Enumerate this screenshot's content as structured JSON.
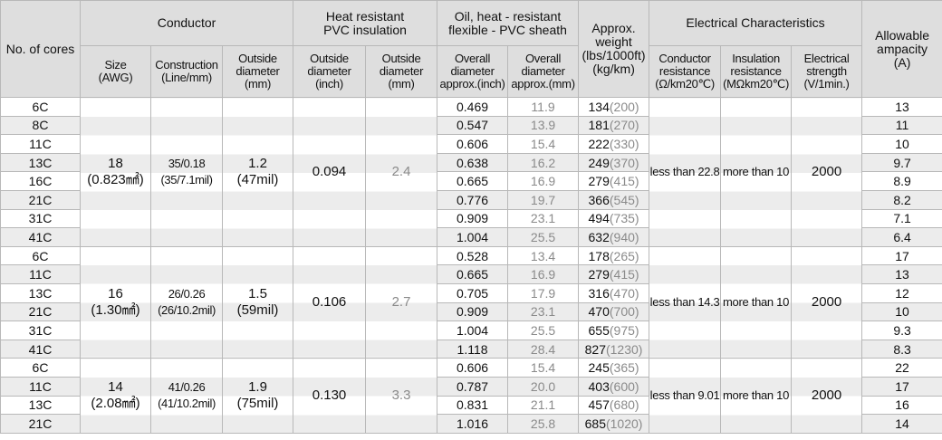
{
  "header": {
    "cells": [
      {
        "lines": [
          "No. of cores"
        ]
      },
      {
        "lines": [
          "Conductor"
        ]
      },
      {
        "lines": [
          "Heat resistant",
          "PVC insulation"
        ]
      },
      {
        "lines": [
          "Oil, heat - resistant",
          "flexible - PVC sheath"
        ]
      },
      {
        "lines": [
          "Approx.",
          "weight",
          "(lbs/1000ft)",
          "(kg/km)"
        ]
      },
      {
        "lines": [
          "Electrical Characteristics"
        ]
      },
      {
        "lines": [
          "Allowable",
          "ampacity",
          "(A)"
        ]
      },
      {
        "lines": [
          "Size",
          "(AWG)"
        ]
      },
      {
        "lines": [
          "Construction",
          "(Line/mm)"
        ]
      },
      {
        "lines": [
          "Outside",
          "diameter",
          "(mm)"
        ]
      },
      {
        "lines": [
          "Outside",
          "diameter",
          "(inch)"
        ]
      },
      {
        "lines": [
          "Outside",
          "diameter",
          "(mm)"
        ]
      },
      {
        "lines": [
          "Overall",
          "diameter",
          "approx.(inch)"
        ]
      },
      {
        "lines": [
          "Overall",
          "diameter",
          "approx.(mm)"
        ]
      },
      {
        "lines": [
          "Conductor",
          "resistance",
          "(Ω/km20℃)"
        ]
      },
      {
        "lines": [
          "Insulation",
          "resistance",
          "(MΩkm20℃)"
        ]
      },
      {
        "lines": [
          "Electrical",
          "strength",
          "(V/1min.)"
        ]
      }
    ]
  },
  "groups": [
    {
      "size": [
        "18",
        "(0.823㎟)"
      ],
      "construction": [
        "35/0.18",
        "(35/7.1mil)"
      ],
      "outside_diameter": [
        "1.2",
        "(47mil)"
      ],
      "insulation_inch": "0.094",
      "insulation_mm": "2.4",
      "conductor_resistance": "less than 22.8",
      "insulation_resistance": "more than 10",
      "electrical_strength": "2000",
      "rows": [
        {
          "cores": "6C",
          "overall_inch": "0.469",
          "overall_mm": "11.9",
          "weight_lbs": "134",
          "weight_kg": "(200)",
          "ampacity": "13"
        },
        {
          "cores": "8C",
          "overall_inch": "0.547",
          "overall_mm": "13.9",
          "weight_lbs": "181",
          "weight_kg": "(270)",
          "ampacity": "11"
        },
        {
          "cores": "11C",
          "overall_inch": "0.606",
          "overall_mm": "15.4",
          "weight_lbs": "222",
          "weight_kg": "(330)",
          "ampacity": "10"
        },
        {
          "cores": "13C",
          "overall_inch": "0.638",
          "overall_mm": "16.2",
          "weight_lbs": "249",
          "weight_kg": "(370)",
          "ampacity": "9.7"
        },
        {
          "cores": "16C",
          "overall_inch": "0.665",
          "overall_mm": "16.9",
          "weight_lbs": "279",
          "weight_kg": "(415)",
          "ampacity": "8.9"
        },
        {
          "cores": "21C",
          "overall_inch": "0.776",
          "overall_mm": "19.7",
          "weight_lbs": "366",
          "weight_kg": "(545)",
          "ampacity": "8.2"
        },
        {
          "cores": "31C",
          "overall_inch": "0.909",
          "overall_mm": "23.1",
          "weight_lbs": "494",
          "weight_kg": "(735)",
          "ampacity": "7.1"
        },
        {
          "cores": "41C",
          "overall_inch": "1.004",
          "overall_mm": "25.5",
          "weight_lbs": "632",
          "weight_kg": "(940)",
          "ampacity": "6.4"
        }
      ]
    },
    {
      "size": [
        "16",
        "(1.30㎟)"
      ],
      "construction": [
        "26/0.26",
        "(26/10.2mil)"
      ],
      "outside_diameter": [
        "1.5",
        "(59mil)"
      ],
      "insulation_inch": "0.106",
      "insulation_mm": "2.7",
      "conductor_resistance": "less than 14.3",
      "insulation_resistance": "more than 10",
      "electrical_strength": "2000",
      "rows": [
        {
          "cores": "6C",
          "overall_inch": "0.528",
          "overall_mm": "13.4",
          "weight_lbs": "178",
          "weight_kg": "(265)",
          "ampacity": "17"
        },
        {
          "cores": "11C",
          "overall_inch": "0.665",
          "overall_mm": "16.9",
          "weight_lbs": "279",
          "weight_kg": "(415)",
          "ampacity": "13"
        },
        {
          "cores": "13C",
          "overall_inch": "0.705",
          "overall_mm": "17.9",
          "weight_lbs": "316",
          "weight_kg": "(470)",
          "ampacity": "12"
        },
        {
          "cores": "21C",
          "overall_inch": "0.909",
          "overall_mm": "23.1",
          "weight_lbs": "470",
          "weight_kg": "(700)",
          "ampacity": "10"
        },
        {
          "cores": "31C",
          "overall_inch": "1.004",
          "overall_mm": "25.5",
          "weight_lbs": "655",
          "weight_kg": "(975)",
          "ampacity": "9.3"
        },
        {
          "cores": "41C",
          "overall_inch": "1.118",
          "overall_mm": "28.4",
          "weight_lbs": "827",
          "weight_kg": "(1230)",
          "ampacity": "8.3"
        }
      ]
    },
    {
      "size": [
        "14",
        "(2.08㎟)"
      ],
      "construction": [
        "41/0.26",
        "(41/10.2mil)"
      ],
      "outside_diameter": [
        "1.9",
        "(75mil)"
      ],
      "insulation_inch": "0.130",
      "insulation_mm": "3.3",
      "conductor_resistance": "less than 9.01",
      "insulation_resistance": "more than 10",
      "electrical_strength": "2000",
      "rows": [
        {
          "cores": "6C",
          "overall_inch": "0.606",
          "overall_mm": "15.4",
          "weight_lbs": "245",
          "weight_kg": "(365)",
          "ampacity": "22"
        },
        {
          "cores": "11C",
          "overall_inch": "0.787",
          "overall_mm": "20.0",
          "weight_lbs": "403",
          "weight_kg": "(600)",
          "ampacity": "17"
        },
        {
          "cores": "13C",
          "overall_inch": "0.831",
          "overall_mm": "21.1",
          "weight_lbs": "457",
          "weight_kg": "(680)",
          "ampacity": "16"
        },
        {
          "cores": "21C",
          "overall_inch": "1.016",
          "overall_mm": "25.8",
          "weight_lbs": "685",
          "weight_kg": "(1020)",
          "ampacity": "14"
        }
      ]
    }
  ]
}
